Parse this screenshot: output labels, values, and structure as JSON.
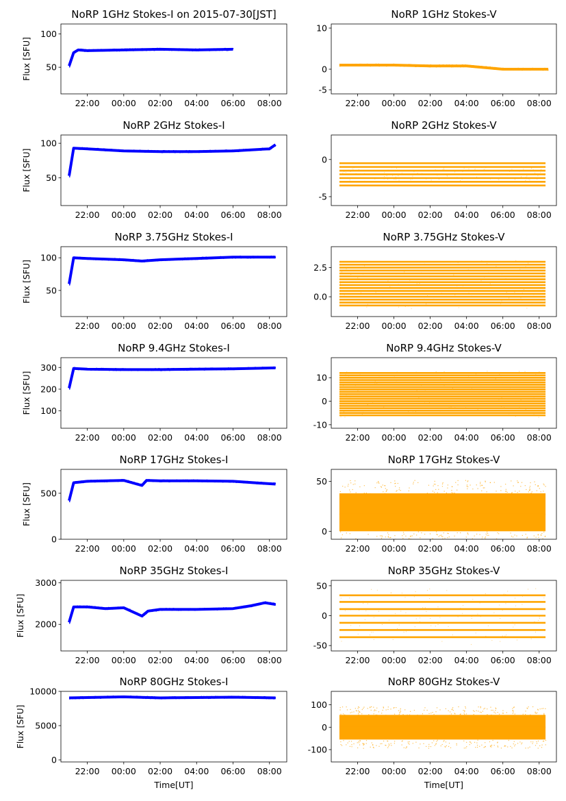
{
  "figure": {
    "title": "NoRP 1GHz Stokes-I on 2015-07-30[JST]",
    "xlabel": "Time[UT]",
    "ylabel": "Flux [SFU]"
  },
  "colors": {
    "stokes_i": "#0000ff",
    "stokes_v": "#ffa500",
    "axis": "#000000",
    "background": "#ffffff"
  },
  "x_ticks": [
    "22:00",
    "00:00",
    "02:00",
    "04:00",
    "06:00",
    "08:00"
  ],
  "chart_data": [
    {
      "type": "scatter",
      "title": "NoRP 1GHz Stokes-I on 2015-07-30[JST]",
      "ylabel": "Flux [SFU]",
      "xlabel": "",
      "ylim": [
        10,
        115
      ],
      "yticks": [
        "50",
        "100"
      ],
      "series": [
        {
          "color": "#0000ff",
          "x": [
            "21:00",
            "21:15",
            "21:30",
            "22:00",
            "00:00",
            "02:00",
            "04:00",
            "06:00"
          ],
          "y": [
            52,
            72,
            76,
            75,
            76,
            77,
            76,
            77
          ]
        }
      ]
    },
    {
      "type": "scatter",
      "title": "NoRP 1GHz Stokes-V",
      "ylabel": "",
      "xlabel": "",
      "ylim": [
        -6,
        11
      ],
      "yticks": [
        "-5",
        "0",
        "10"
      ],
      "series": [
        {
          "color": "#ffa500",
          "x": [
            "21:00",
            "22:00",
            "00:00",
            "02:00",
            "04:00",
            "06:00",
            "08:30"
          ],
          "y": [
            1,
            1,
            1,
            0.8,
            0.8,
            0,
            0
          ]
        }
      ]
    },
    {
      "type": "scatter",
      "title": "NoRP 2GHz Stokes-I",
      "ylabel": "Flux [SFU]",
      "xlabel": "",
      "ylim": [
        10,
        112
      ],
      "yticks": [
        "50",
        "100"
      ],
      "series": [
        {
          "color": "#0000ff",
          "x": [
            "21:00",
            "21:15",
            "22:00",
            "00:00",
            "02:00",
            "04:00",
            "06:00",
            "08:00",
            "08:20"
          ],
          "y": [
            53,
            93,
            92,
            89,
            88,
            88,
            89,
            92,
            98
          ]
        }
      ]
    },
    {
      "type": "scatter",
      "title": "NoRP 2GHz Stokes-V",
      "ylabel": "",
      "xlabel": "",
      "ylim": [
        -6.2,
        3.3
      ],
      "yticks": [
        "-5",
        "0"
      ],
      "series": [
        {
          "color": "#ffa500",
          "levels": [
            -0.5,
            -1,
            -1.5,
            -2,
            -2.5,
            -3,
            -3.5
          ]
        }
      ]
    },
    {
      "type": "scatter",
      "title": "NoRP 3.75GHz Stokes-I",
      "ylabel": "Flux [SFU]",
      "xlabel": "",
      "ylim": [
        10,
        117
      ],
      "yticks": [
        "50",
        "100"
      ],
      "series": [
        {
          "color": "#0000ff",
          "x": [
            "21:00",
            "21:15",
            "22:00",
            "00:00",
            "01:00",
            "02:00",
            "04:00",
            "06:00",
            "08:20"
          ],
          "y": [
            60,
            100,
            99,
            97,
            95,
            97,
            99,
            101,
            101
          ]
        }
      ]
    },
    {
      "type": "scatter",
      "title": "NoRP 3.75GHz Stokes-V",
      "ylabel": "",
      "xlabel": "",
      "ylim": [
        -1.7,
        4.3
      ],
      "yticks": [
        "0.0",
        "2.5"
      ],
      "series": [
        {
          "color": "#ffa500",
          "levels": [
            -0.75,
            -0.5,
            -0.25,
            0,
            0.25,
            0.5,
            0.75,
            1,
            1.25,
            1.5,
            1.75,
            2,
            2.25,
            2.5,
            2.75,
            3
          ]
        }
      ]
    },
    {
      "type": "scatter",
      "title": "NoRP 9.4GHz Stokes-I",
      "ylabel": "Flux [SFU]",
      "xlabel": "",
      "ylim": [
        20,
        345
      ],
      "yticks": [
        "100",
        "200",
        "300"
      ],
      "series": [
        {
          "color": "#0000ff",
          "x": [
            "21:00",
            "21:15",
            "22:00",
            "00:00",
            "02:00",
            "04:00",
            "06:00",
            "08:20"
          ],
          "y": [
            205,
            295,
            292,
            290,
            290,
            292,
            294,
            298
          ]
        }
      ]
    },
    {
      "type": "scatter",
      "title": "NoRP 9.4GHz Stokes-V",
      "ylabel": "",
      "xlabel": "",
      "ylim": [
        -11.5,
        18.5
      ],
      "yticks": [
        "-10",
        "0",
        "10"
      ],
      "series": [
        {
          "color": "#ffa500",
          "levels": [
            -6,
            -5,
            -4,
            -3,
            -2,
            -1,
            0,
            1,
            2,
            3,
            4,
            5,
            6,
            7,
            8,
            9,
            10,
            11,
            12
          ]
        }
      ]
    },
    {
      "type": "scatter",
      "title": "NoRP 17GHz Stokes-I",
      "ylabel": "Flux [SFU]",
      "xlabel": "",
      "ylim": [
        0,
        760
      ],
      "yticks": [
        "0",
        "500"
      ],
      "series": [
        {
          "color": "#0000ff",
          "x": [
            "21:00",
            "21:15",
            "22:00",
            "00:00",
            "01:00",
            "01:15",
            "02:00",
            "04:00",
            "06:00",
            "07:30",
            "08:20"
          ],
          "y": [
            420,
            615,
            630,
            640,
            585,
            640,
            635,
            635,
            630,
            610,
            600
          ]
        }
      ]
    },
    {
      "type": "scatter",
      "title": "NoRP 17GHz Stokes-V",
      "ylabel": "",
      "xlabel": "",
      "ylim": [
        -8,
        62
      ],
      "yticks": [
        "0",
        "50"
      ],
      "series": [
        {
          "color": "#ffa500",
          "band": [
            0,
            38
          ],
          "center": 17
        }
      ]
    },
    {
      "type": "scatter",
      "title": "NoRP 35GHz Stokes-I",
      "ylabel": "Flux [SFU]",
      "xlabel": "",
      "ylim": [
        1360,
        3060
      ],
      "yticks": [
        "2000",
        "3000"
      ],
      "series": [
        {
          "color": "#0000ff",
          "x": [
            "21:00",
            "21:15",
            "22:00",
            "23:00",
            "00:00",
            "01:00",
            "01:20",
            "02:00",
            "04:00",
            "06:00",
            "07:00",
            "07:45",
            "08:20"
          ],
          "y": [
            2050,
            2420,
            2420,
            2380,
            2400,
            2200,
            2320,
            2360,
            2360,
            2380,
            2450,
            2520,
            2480
          ]
        }
      ]
    },
    {
      "type": "scatter",
      "title": "NoRP 35GHz Stokes-V",
      "ylabel": "",
      "xlabel": "",
      "ylim": [
        -59,
        59
      ],
      "yticks": [
        "-50",
        "0",
        "50"
      ],
      "series": [
        {
          "color": "#ffa500",
          "levels": [
            -36,
            -24,
            -12,
            0,
            11,
            23,
            34
          ]
        }
      ]
    },
    {
      "type": "scatter",
      "title": "NoRP 80GHz Stokes-I",
      "ylabel": "Flux [SFU]",
      "xlabel": "Time[UT]",
      "ylim": [
        -300,
        10000
      ],
      "yticks": [
        "0",
        "5000",
        "10000"
      ],
      "series": [
        {
          "color": "#0000ff",
          "x": [
            "21:00",
            "22:00",
            "00:00",
            "02:00",
            "04:00",
            "06:00",
            "08:20"
          ],
          "y": [
            9050,
            9100,
            9200,
            9050,
            9100,
            9150,
            9050
          ]
        }
      ]
    },
    {
      "type": "scatter",
      "title": "NoRP 80GHz Stokes-V",
      "ylabel": "",
      "xlabel": "Time[UT]",
      "ylim": [
        -155,
        160
      ],
      "yticks": [
        "-100",
        "0",
        "100"
      ],
      "series": [
        {
          "color": "#ffa500",
          "band": [
            -55,
            55
          ],
          "center": 0
        }
      ]
    }
  ]
}
